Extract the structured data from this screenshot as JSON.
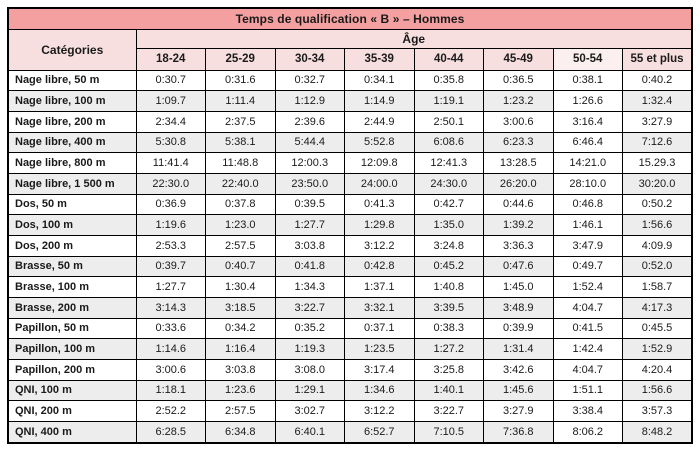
{
  "table": {
    "title": "Temps de qualification « B » – Hommes",
    "categories_header": "Catégories",
    "age_header": "Âge",
    "age_groups": [
      "18-24",
      "25-29",
      "30-34",
      "35-39",
      "40-44",
      "45-49",
      "50-54",
      "55 et plus"
    ],
    "rows": [
      {
        "label": "Nage libre, 50 m",
        "times": [
          "0:30.7",
          "0:31.6",
          "0:32.7",
          "0:34.1",
          "0:35.8",
          "0:36.5",
          "0:38.1",
          "0:40.2"
        ]
      },
      {
        "label": "Nage libre, 100 m",
        "times": [
          "1:09.7",
          "1:11.4",
          "1:12.9",
          "1:14.9",
          "1:19.1",
          "1:23.2",
          "1:26.6",
          "1:32.4"
        ]
      },
      {
        "label": "Nage libre, 200 m",
        "times": [
          "2:34.4",
          "2:37.5",
          "2:39.6",
          "2:44.9",
          "2:50.1",
          "3:00.6",
          "3:16.4",
          "3:27.9"
        ]
      },
      {
        "label": "Nage libre, 400 m",
        "times": [
          "5:30.8",
          "5:38.1",
          "5:44.4",
          "5:52.8",
          "6:08.6",
          "6:23.3",
          "6:46.4",
          "7:12.6"
        ]
      },
      {
        "label": "Nage libre, 800 m",
        "times": [
          "11:41.4",
          "11:48.8",
          "12:00.3",
          "12:09.8",
          "12:41.3",
          "13:28.5",
          "14:21.0",
          "15.29.3"
        ]
      },
      {
        "label": "Nage libre, 1 500 m",
        "times": [
          "22:30.0",
          "22:40.0",
          "23:50.0",
          "24:00.0",
          "24:30.0",
          "26:20.0",
          "28:10.0",
          "30:20.0"
        ]
      },
      {
        "label": "Dos, 50 m",
        "times": [
          "0:36.9",
          "0:37.8",
          "0:39.5",
          "0:41.3",
          "0:42.7",
          "0:44.6",
          "0:46.8",
          "0:50.2"
        ]
      },
      {
        "label": "Dos, 100 m",
        "times": [
          "1:19.6",
          "1:23.0",
          "1:27.7",
          "1:29.8",
          "1:35.0",
          "1:39.2",
          "1:46.1",
          "1:56.6"
        ]
      },
      {
        "label": "Dos, 200 m",
        "times": [
          "2:53.3",
          "2:57.5",
          "3:03.8",
          "3:12.2",
          "3:24.8",
          "3:36.3",
          "3:47.9",
          "4:09.9"
        ]
      },
      {
        "label": "Brasse, 50 m",
        "times": [
          "0:39.7",
          "0:40.7",
          "0:41.8",
          "0:42.8",
          "0:45.2",
          "0:47.6",
          "0:49.7",
          "0:52.0"
        ]
      },
      {
        "label": "Brasse, 100 m",
        "times": [
          "1:27.7",
          "1:30.4",
          "1:34.3",
          "1:37.1",
          "1:40.8",
          "1:45.0",
          "1:52.4",
          "1:58.7"
        ]
      },
      {
        "label": "Brasse, 200 m",
        "times": [
          "3:14.3",
          "3:18.5",
          "3:22.7",
          "3:32.1",
          "3:39.5",
          "3:48.9",
          "4:04.7",
          "4:17.3"
        ]
      },
      {
        "label": "Papillon, 50 m",
        "times": [
          "0:33.6",
          "0:34.2",
          "0:35.2",
          "0:37.1",
          "0:38.3",
          "0:39.9",
          "0:41.5",
          "0:45.5"
        ]
      },
      {
        "label": "Papillon, 100 m",
        "times": [
          "1:14.6",
          "1:16.4",
          "1:19.3",
          "1:23.5",
          "1:27.2",
          "1:31.4",
          "1:42.4",
          "1:52.9"
        ]
      },
      {
        "label": "Papillon, 200 m",
        "times": [
          "3:00.6",
          "3:03.8",
          "3:08.0",
          "3:17.4",
          "3:25.8",
          "3:42.6",
          "4:04.7",
          "4:20.4"
        ]
      },
      {
        "label": "QNI, 100 m",
        "times": [
          "1:18.1",
          "1:23.6",
          "1:29.1",
          "1:34.6",
          "1:40.1",
          "1:45.6",
          "1:51.1",
          "1:56.6"
        ]
      },
      {
        "label": "QNI, 200 m",
        "times": [
          "2:52.2",
          "2:57.5",
          "3:02.7",
          "3:12.2",
          "3:22.7",
          "3:27.9",
          "3:38.4",
          "3:57.3"
        ]
      },
      {
        "label": "QNI, 400 m",
        "times": [
          "6:28.5",
          "6:34.8",
          "6:40.1",
          "6:52.7",
          "7:10.5",
          "7:36.8",
          "8:06.2",
          "8:48.2"
        ]
      }
    ]
  },
  "colors": {
    "title_bg": "#f4a0a0",
    "header_bg": "#f8dfdf",
    "header_light_bg": "#fcefef",
    "alt_row_bg": "#ededed",
    "border_color": "#000000",
    "text_color": "#1a1a1a"
  }
}
